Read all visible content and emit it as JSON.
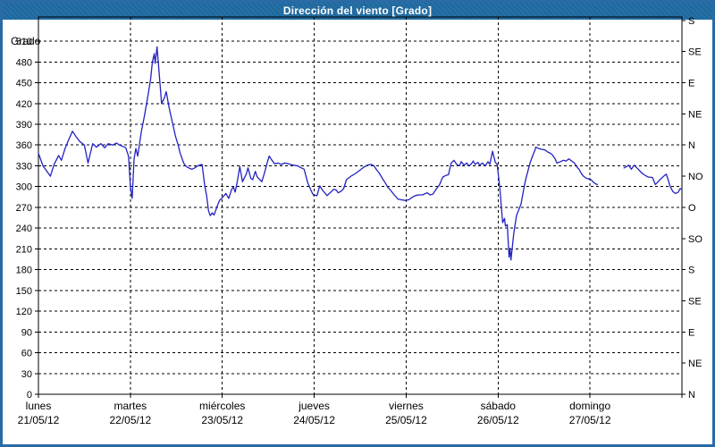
{
  "window": {
    "title": "Dirección del viento [Grado]"
  },
  "colors": {
    "titlebar_bg": "#1f6ba3",
    "frame_border": "#2a6ba6",
    "line": "#2222c2",
    "grid": "#000000",
    "text": "#000000",
    "plot_bg": "#ffffff"
  },
  "chart_data": {
    "type": "line",
    "title": "Dirección del viento [Grado]",
    "ylabel_left": "Grado",
    "ylim": [
      0,
      545
    ],
    "xlim_days": [
      0,
      7
    ],
    "grid": "dashed",
    "y_left_ticks": [
      0,
      30,
      60,
      90,
      120,
      150,
      180,
      210,
      240,
      270,
      300,
      330,
      360,
      390,
      420,
      450,
      480,
      510
    ],
    "y_right_ticks": [
      {
        "value": 540,
        "label": "S"
      },
      {
        "value": 495,
        "label": "SE"
      },
      {
        "value": 450,
        "label": "E"
      },
      {
        "value": 405,
        "label": "NE"
      },
      {
        "value": 360,
        "label": "N"
      },
      {
        "value": 315,
        "label": "NO"
      },
      {
        "value": 270,
        "label": "O"
      },
      {
        "value": 225,
        "label": "SO"
      },
      {
        "value": 180,
        "label": "S"
      },
      {
        "value": 135,
        "label": "SE"
      },
      {
        "value": 90,
        "label": "E"
      },
      {
        "value": 45,
        "label": "NE"
      },
      {
        "value": 0,
        "label": "N"
      }
    ],
    "x_days": [
      {
        "name": "lunes",
        "date": "21/05/12"
      },
      {
        "name": "martes",
        "date": "22/05/12"
      },
      {
        "name": "miércoles",
        "date": "23/05/12"
      },
      {
        "name": "jueves",
        "date": "24/05/12"
      },
      {
        "name": "viernes",
        "date": "25/05/12"
      },
      {
        "name": "sábado",
        "date": "26/05/12"
      },
      {
        "name": "domingo",
        "date": "27/05/12"
      }
    ],
    "series": [
      {
        "name": "Dirección del viento",
        "unit": "Grado",
        "segments": [
          [
            [
              0.0,
              348
            ],
            [
              0.05,
              330
            ],
            [
              0.13,
              315
            ],
            [
              0.17,
              332
            ],
            [
              0.22,
              345
            ],
            [
              0.25,
              338
            ],
            [
              0.29,
              355
            ],
            [
              0.33,
              368
            ],
            [
              0.37,
              380
            ],
            [
              0.41,
              372
            ],
            [
              0.45,
              365
            ],
            [
              0.5,
              360
            ],
            [
              0.54,
              334
            ],
            [
              0.59,
              362
            ],
            [
              0.63,
              357
            ],
            [
              0.68,
              362
            ],
            [
              0.72,
              356
            ],
            [
              0.76,
              362
            ],
            [
              0.81,
              360
            ],
            [
              0.85,
              363
            ],
            [
              0.88,
              360
            ],
            [
              0.92,
              358
            ],
            [
              0.95,
              356
            ],
            [
              0.98,
              344
            ],
            [
              1.0,
              300
            ],
            [
              1.02,
              283
            ],
            [
              1.04,
              340
            ],
            [
              1.06,
              355
            ],
            [
              1.08,
              344
            ],
            [
              1.12,
              380
            ],
            [
              1.15,
              400
            ],
            [
              1.19,
              430
            ],
            [
              1.22,
              455
            ],
            [
              1.24,
              480
            ],
            [
              1.26,
              492
            ],
            [
              1.27,
              478
            ],
            [
              1.29,
              502
            ],
            [
              1.31,
              470
            ],
            [
              1.34,
              420
            ],
            [
              1.37,
              428
            ],
            [
              1.39,
              437
            ],
            [
              1.42,
              415
            ],
            [
              1.44,
              403
            ],
            [
              1.47,
              385
            ],
            [
              1.49,
              373
            ],
            [
              1.52,
              360
            ],
            [
              1.54,
              349
            ],
            [
              1.58,
              334
            ],
            [
              1.6,
              330
            ],
            [
              1.62,
              328
            ],
            [
              1.65,
              326
            ],
            [
              1.67,
              325
            ],
            [
              1.7,
              327
            ],
            [
              1.72,
              329
            ],
            [
              1.75,
              331
            ],
            [
              1.78,
              332
            ],
            [
              1.81,
              300
            ],
            [
              1.83,
              287
            ],
            [
              1.85,
              265
            ],
            [
              1.87,
              258
            ],
            [
              1.89,
              262
            ],
            [
              1.91,
              259
            ],
            [
              1.93,
              266
            ],
            [
              1.94,
              270
            ],
            [
              1.97,
              280
            ],
            [
              2.0,
              284
            ],
            [
              2.04,
              290
            ],
            [
              2.07,
              283
            ],
            [
              2.1,
              295
            ],
            [
              2.12,
              300
            ],
            [
              2.14,
              292
            ],
            [
              2.16,
              305
            ],
            [
              2.19,
              329
            ],
            [
              2.22,
              307
            ],
            [
              2.26,
              318
            ],
            [
              2.28,
              327
            ],
            [
              2.31,
              312
            ],
            [
              2.33,
              310
            ],
            [
              2.36,
              322
            ],
            [
              2.38,
              314
            ],
            [
              2.41,
              310
            ],
            [
              2.43,
              307
            ],
            [
              2.46,
              320
            ],
            [
              2.49,
              335
            ],
            [
              2.51,
              344
            ],
            [
              2.54,
              338
            ],
            [
              2.57,
              333
            ],
            [
              2.61,
              334
            ],
            [
              2.64,
              332
            ],
            [
              2.68,
              334
            ],
            [
              2.72,
              333
            ],
            [
              2.77,
              331
            ],
            [
              2.82,
              330
            ],
            [
              2.86,
              327
            ],
            [
              2.89,
              325
            ],
            [
              2.93,
              305
            ],
            [
              2.97,
              293
            ],
            [
              2.99,
              288
            ],
            [
              3.03,
              287
            ],
            [
              3.06,
              301
            ],
            [
              3.09,
              295
            ],
            [
              3.12,
              290
            ],
            [
              3.14,
              287
            ],
            [
              3.18,
              292
            ],
            [
              3.21,
              296
            ],
            [
              3.24,
              295
            ],
            [
              3.26,
              291
            ],
            [
              3.29,
              293
            ],
            [
              3.32,
              297
            ],
            [
              3.35,
              310
            ],
            [
              3.4,
              315
            ],
            [
              3.45,
              319
            ],
            [
              3.5,
              324
            ],
            [
              3.54,
              328
            ],
            [
              3.58,
              331
            ],
            [
              3.62,
              332
            ],
            [
              3.65,
              330
            ],
            [
              3.68,
              324
            ],
            [
              3.71,
              319
            ],
            [
              3.74,
              312
            ],
            [
              3.77,
              306
            ],
            [
              3.8,
              299
            ],
            [
              3.83,
              295
            ],
            [
              3.87,
              288
            ],
            [
              3.91,
              282
            ],
            [
              3.94,
              281
            ],
            [
              3.99,
              280
            ],
            [
              4.03,
              281
            ],
            [
              4.06,
              284
            ],
            [
              4.1,
              287
            ],
            [
              4.14,
              288
            ],
            [
              4.18,
              288
            ],
            [
              4.21,
              290
            ],
            [
              4.23,
              291
            ],
            [
              4.26,
              288
            ],
            [
              4.29,
              289
            ],
            [
              4.33,
              297
            ],
            [
              4.36,
              302
            ],
            [
              4.38,
              308
            ],
            [
              4.4,
              314
            ],
            [
              4.43,
              316
            ],
            [
              4.46,
              317
            ],
            [
              4.49,
              334
            ],
            [
              4.52,
              338
            ],
            [
              4.55,
              332
            ],
            [
              4.58,
              330
            ],
            [
              4.6,
              336
            ],
            [
              4.63,
              331
            ],
            [
              4.66,
              334
            ],
            [
              4.68,
              330
            ],
            [
              4.71,
              333
            ],
            [
              4.73,
              337
            ],
            [
              4.75,
              332
            ],
            [
              4.78,
              335
            ],
            [
              4.8,
              331
            ],
            [
              4.83,
              334
            ],
            [
              4.86,
              330
            ],
            [
              4.89,
              336
            ],
            [
              4.91,
              332
            ],
            [
              4.94,
              351
            ],
            [
              4.97,
              335
            ],
            [
              4.99,
              332
            ],
            [
              5.02,
              297
            ],
            [
              5.05,
              248
            ],
            [
              5.07,
              254
            ],
            [
              5.08,
              243
            ],
            [
              5.1,
              245
            ],
            [
              5.12,
              198
            ],
            [
              5.13,
              211
            ],
            [
              5.14,
              194
            ],
            [
              5.17,
              232
            ],
            [
              5.2,
              258
            ],
            [
              5.25,
              275
            ],
            [
              5.28,
              297
            ],
            [
              5.3,
              310
            ],
            [
              5.33,
              325
            ],
            [
              5.35,
              335
            ],
            [
              5.38,
              346
            ],
            [
              5.4,
              352
            ],
            [
              5.41,
              357
            ],
            [
              5.44,
              355
            ],
            [
              5.47,
              354
            ],
            [
              5.51,
              353
            ],
            [
              5.54,
              350
            ],
            [
              5.57,
              348
            ],
            [
              5.59,
              346
            ],
            [
              5.62,
              340
            ],
            [
              5.64,
              334
            ],
            [
              5.68,
              336
            ],
            [
              5.71,
              338
            ],
            [
              5.74,
              337
            ],
            [
              5.77,
              340
            ],
            [
              5.79,
              338
            ],
            [
              5.83,
              334
            ],
            [
              5.86,
              328
            ],
            [
              5.88,
              325
            ],
            [
              5.91,
              318
            ],
            [
              5.93,
              315
            ],
            [
              5.96,
              312
            ],
            [
              5.99,
              311
            ],
            [
              6.01,
              310
            ],
            [
              6.04,
              306
            ],
            [
              6.06,
              304
            ],
            [
              6.08,
              303
            ]
          ],
          [
            [
              6.37,
              327
            ],
            [
              6.4,
              329
            ],
            [
              6.42,
              331
            ],
            [
              6.45,
              325
            ],
            [
              6.48,
              331
            ],
            [
              6.51,
              327
            ],
            [
              6.54,
              323
            ],
            [
              6.56,
              320
            ],
            [
              6.59,
              317
            ],
            [
              6.63,
              314
            ],
            [
              6.68,
              313
            ],
            [
              6.71,
              303
            ],
            [
              6.74,
              307
            ],
            [
              6.76,
              310
            ],
            [
              6.81,
              316
            ],
            [
              6.83,
              318
            ],
            [
              6.85,
              310
            ],
            [
              6.87,
              301
            ],
            [
              6.9,
              293
            ],
            [
              6.93,
              290
            ],
            [
              6.96,
              292
            ],
            [
              6.98,
              297
            ],
            [
              7.0,
              296
            ]
          ]
        ]
      }
    ]
  }
}
